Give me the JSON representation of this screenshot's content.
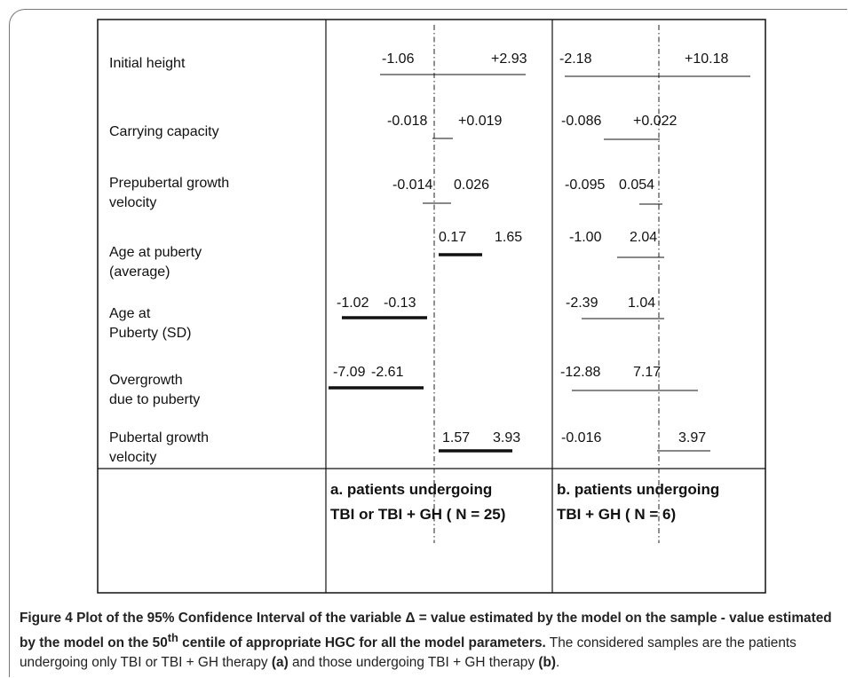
{
  "rows": [
    {
      "label": [
        "Initial height"
      ],
      "a": {
        "low": "-1.06",
        "high": "+2.93"
      },
      "b": {
        "low": "-2.18",
        "high": "+10.18"
      }
    },
    {
      "label": [
        "Carrying capacity"
      ],
      "a": {
        "low": "-0.018",
        "high": "+0.019"
      },
      "b": {
        "low": "-0.086",
        "high": "+0.022"
      }
    },
    {
      "label": [
        "Prepubertal growth",
        "velocity"
      ],
      "a": {
        "low": "-0.014",
        "high": "0.026"
      },
      "b": {
        "low": "-0.095",
        "high": "0.054"
      }
    },
    {
      "label": [
        "Age at puberty",
        "(average)"
      ],
      "a": {
        "low": "0.17",
        "high": "1.65"
      },
      "b": {
        "low": "-1.00",
        "high": "2.04"
      }
    },
    {
      "label": [
        "Age at",
        "Puberty (SD)"
      ],
      "a": {
        "low": "-1.02",
        "high": "-0.13"
      },
      "b": {
        "low": "-2.39",
        "high": "1.04"
      }
    },
    {
      "label": [
        "Overgrowth",
        "due to puberty"
      ],
      "a": {
        "low": "-7.09",
        "high": "-2.61"
      },
      "b": {
        "low": "-12.88",
        "high": "7.17"
      }
    },
    {
      "label": [
        "Pubertal growth",
        "velocity"
      ],
      "a": {
        "low": "1.57",
        "high": "3.93"
      },
      "b": {
        "low": "-0.016",
        "high": "3.97"
      }
    }
  ],
  "columns": {
    "a": [
      "a.  patients undergoing",
      "TBI or TBI + GH ( N = 25)"
    ],
    "b": [
      "b. patients undergoing",
      "TBI + GH ( N = 6)"
    ]
  },
  "caption": {
    "figure": "Figure 4",
    "title": " Plot of the 95% Confidence Interval of the variable Δ = value estimated by the model on the sample - value estimated by the model on the 50",
    "title_sup": "th",
    "title_end": " centile of appropriate HGC for all the model parameters.",
    "text_1": " The considered samples are the patients undergoing only TBI or TBI + GH therapy ",
    "ref_a": "(a)",
    "text_2": " and those undergoing TBI + GH therapy ",
    "ref_b": "(b)",
    "text_3": "."
  }
}
